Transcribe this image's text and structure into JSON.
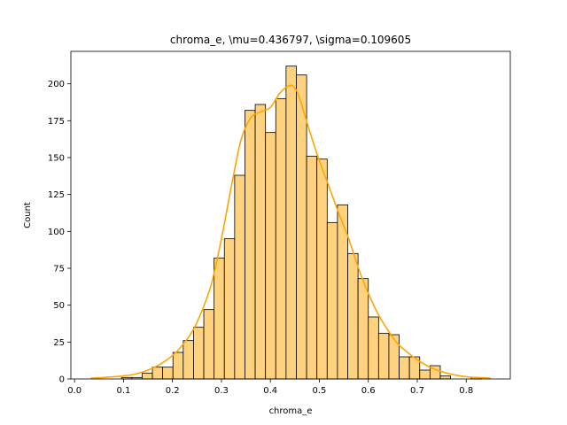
{
  "chart_data": {
    "type": "bar",
    "title": "chroma_e, \\mu=0.436797, \\sigma=0.109605",
    "xlabel": "chroma_e",
    "ylabel": "Count",
    "xlim": [
      -0.0075,
      0.89
    ],
    "ylim": [
      0,
      222
    ],
    "xticks": [
      0.0,
      0.1,
      0.2,
      0.3,
      0.4,
      0.5,
      0.6,
      0.7,
      0.8
    ],
    "xtick_labels": [
      "0.0",
      "0.1",
      "0.2",
      "0.3",
      "0.4",
      "0.5",
      "0.6",
      "0.7",
      "0.8"
    ],
    "yticks": [
      0,
      25,
      50,
      75,
      100,
      125,
      150,
      175,
      200
    ],
    "ytick_labels": [
      "0",
      "25",
      "50",
      "75",
      "100",
      "125",
      "150",
      "175",
      "200"
    ],
    "grid": false,
    "bar_color": "#ffd27f",
    "edge_color": "#000000",
    "kde_color": "#ffa500",
    "bins": [
      {
        "x0": 0.033,
        "x1": 0.054,
        "count": 0
      },
      {
        "x0": 0.054,
        "x1": 0.075,
        "count": 0
      },
      {
        "x0": 0.075,
        "x1": 0.096,
        "count": 0
      },
      {
        "x0": 0.096,
        "x1": 0.117,
        "count": 1
      },
      {
        "x0": 0.117,
        "x1": 0.138,
        "count": 1
      },
      {
        "x0": 0.138,
        "x1": 0.159,
        "count": 4
      },
      {
        "x0": 0.159,
        "x1": 0.18,
        "count": 8
      },
      {
        "x0": 0.18,
        "x1": 0.201,
        "count": 8
      },
      {
        "x0": 0.201,
        "x1": 0.222,
        "count": 18
      },
      {
        "x0": 0.222,
        "x1": 0.243,
        "count": 26
      },
      {
        "x0": 0.243,
        "x1": 0.264,
        "count": 35
      },
      {
        "x0": 0.264,
        "x1": 0.285,
        "count": 47
      },
      {
        "x0": 0.285,
        "x1": 0.306,
        "count": 82
      },
      {
        "x0": 0.306,
        "x1": 0.327,
        "count": 95
      },
      {
        "x0": 0.327,
        "x1": 0.348,
        "count": 138
      },
      {
        "x0": 0.348,
        "x1": 0.369,
        "count": 182
      },
      {
        "x0": 0.369,
        "x1": 0.39,
        "count": 186
      },
      {
        "x0": 0.39,
        "x1": 0.411,
        "count": 167
      },
      {
        "x0": 0.411,
        "x1": 0.432,
        "count": 190
      },
      {
        "x0": 0.432,
        "x1": 0.453,
        "count": 212
      },
      {
        "x0": 0.453,
        "x1": 0.474,
        "count": 206
      },
      {
        "x0": 0.474,
        "x1": 0.495,
        "count": 151
      },
      {
        "x0": 0.495,
        "x1": 0.516,
        "count": 149
      },
      {
        "x0": 0.516,
        "x1": 0.537,
        "count": 106
      },
      {
        "x0": 0.537,
        "x1": 0.558,
        "count": 118
      },
      {
        "x0": 0.558,
        "x1": 0.579,
        "count": 85
      },
      {
        "x0": 0.579,
        "x1": 0.6,
        "count": 68
      },
      {
        "x0": 0.6,
        "x1": 0.621,
        "count": 42
      },
      {
        "x0": 0.621,
        "x1": 0.642,
        "count": 31
      },
      {
        "x0": 0.642,
        "x1": 0.663,
        "count": 30
      },
      {
        "x0": 0.663,
        "x1": 0.684,
        "count": 15
      },
      {
        "x0": 0.684,
        "x1": 0.705,
        "count": 15
      },
      {
        "x0": 0.705,
        "x1": 0.726,
        "count": 6
      },
      {
        "x0": 0.726,
        "x1": 0.747,
        "count": 9
      },
      {
        "x0": 0.747,
        "x1": 0.768,
        "count": 2
      },
      {
        "x0": 0.768,
        "x1": 0.789,
        "count": 0
      },
      {
        "x0": 0.789,
        "x1": 0.81,
        "count": 0
      },
      {
        "x0": 0.81,
        "x1": 0.831,
        "count": 1
      },
      {
        "x0": 0.831,
        "x1": 0.852,
        "count": 0
      }
    ],
    "kde": {
      "x": [
        0.033,
        0.08,
        0.12,
        0.15,
        0.18,
        0.21,
        0.24,
        0.26,
        0.28,
        0.3,
        0.32,
        0.34,
        0.36,
        0.38,
        0.4,
        0.42,
        0.44,
        0.45,
        0.46,
        0.48,
        0.5,
        0.52,
        0.54,
        0.56,
        0.58,
        0.6,
        0.62,
        0.64,
        0.66,
        0.68,
        0.7,
        0.72,
        0.74,
        0.76,
        0.78,
        0.8,
        0.82,
        0.85
      ],
      "y": [
        0.5,
        1.5,
        3,
        6,
        11,
        19,
        32,
        46,
        65,
        95,
        130,
        162,
        177,
        181,
        184,
        194,
        199,
        197,
        190,
        168,
        148,
        130,
        112,
        95,
        75,
        58,
        44,
        33,
        24,
        18,
        13,
        9,
        6,
        4,
        2.5,
        1.5,
        1,
        0.5
      ]
    }
  }
}
